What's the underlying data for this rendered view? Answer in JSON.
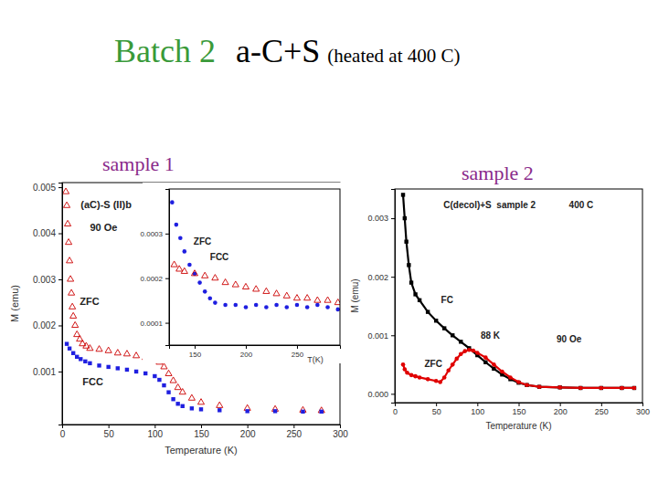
{
  "slide": {
    "title": [
      "Batch 2",
      "a-C+S",
      "(heated at 400 C)"
    ],
    "labels": [
      "sample 1",
      "sample 2"
    ]
  },
  "chart_data": [
    {
      "type": "scatter",
      "x_label": "Temperature (K)",
      "y_label": "M (emu)",
      "xlim": [
        0,
        300
      ],
      "ylim": [
        -0.00015,
        0.0051
      ],
      "xticks": [
        0,
        50,
        100,
        150,
        200,
        250,
        300
      ],
      "yticks": [
        0.001,
        0.002,
        0.003,
        0.004,
        0.005
      ],
      "grid": false,
      "annotations": [
        {
          "text": "(aC)-S (II)b",
          "x": 20,
          "y": 0.0046
        },
        {
          "text": "90 Oe",
          "x": 30,
          "y": 0.0041
        },
        {
          "text": "ZFC",
          "x": 19,
          "y": 0.0025
        },
        {
          "text": "FCC",
          "x": 22,
          "y": 0.00075
        }
      ],
      "series": [
        {
          "color": "#cc0000",
          "marker": "open-triangle",
          "x": [
            4,
            5,
            6,
            7,
            8,
            9,
            10,
            11,
            12,
            14,
            16,
            19,
            22,
            26,
            30,
            40,
            50,
            60,
            70,
            80,
            90,
            100,
            105,
            110,
            115,
            120,
            125,
            130,
            140,
            150,
            170,
            200,
            230,
            260,
            280
          ],
          "values": [
            0.0049,
            0.0046,
            0.0042,
            0.0038,
            0.0034,
            0.003,
            0.0027,
            0.0024,
            0.0022,
            0.002,
            0.0018,
            0.0017,
            0.0016,
            0.00155,
            0.0015,
            0.00148,
            0.00145,
            0.0014,
            0.00138,
            0.00134,
            0.0013,
            0.00125,
            0.0012,
            0.0011,
            0.00095,
            0.0008,
            0.00065,
            0.00055,
            0.00042,
            0.00033,
            0.00026,
            0.0002,
            0.00018,
            0.00016,
            0.00015
          ]
        },
        {
          "color": "#1f1fe0",
          "marker": "square",
          "x": [
            5,
            8,
            12,
            16,
            20,
            25,
            30,
            40,
            50,
            60,
            70,
            80,
            90,
            100,
            105,
            110,
            115,
            120,
            125,
            130,
            140,
            150,
            170,
            200,
            230,
            260,
            280
          ],
          "values": [
            0.0016,
            0.0015,
            0.0014,
            0.00132,
            0.00127,
            0.00122,
            0.00118,
            0.00113,
            0.0011,
            0.00107,
            0.00104,
            0.001,
            0.00096,
            0.0009,
            0.00082,
            0.0007,
            0.00055,
            0.0004,
            0.0003,
            0.00025,
            0.0002,
            0.00018,
            0.00016,
            0.00014,
            0.00014,
            0.00013,
            0.00013
          ]
        }
      ]
    },
    {
      "type": "scatter",
      "x_label": "T(K)",
      "xlim": [
        125,
        292
      ],
      "ylim": [
        5e-05,
        0.0004
      ],
      "xticks": [
        150,
        200,
        250
      ],
      "yticks": [
        0.0001,
        0.0002,
        0.0003
      ],
      "grid": false,
      "annotations": [
        {
          "text": "ZFC",
          "x": 149,
          "y": 0.00028
        },
        {
          "text": "FCC",
          "x": 165,
          "y": 0.000245
        }
      ],
      "series": [
        {
          "color": "#1f1fe0",
          "marker": "circle",
          "x": [
            128,
            132,
            136,
            140,
            145,
            150,
            155,
            160,
            165,
            170,
            180,
            190,
            200,
            210,
            220,
            230,
            240,
            250,
            260,
            270,
            280,
            290
          ],
          "values": [
            0.00037,
            0.00032,
            0.00029,
            0.00026,
            0.00023,
            0.00021,
            0.00019,
            0.00017,
            0.000155,
            0.000145,
            0.00014,
            0.00014,
            0.000135,
            0.00014,
            0.000135,
            0.00014,
            0.000135,
            0.00014,
            0.000135,
            0.00014,
            0.000135,
            0.00013
          ]
        },
        {
          "color": "#cc0000",
          "marker": "open-triangle",
          "x": [
            130,
            135,
            140,
            150,
            160,
            170,
            180,
            190,
            200,
            210,
            220,
            230,
            240,
            250,
            260,
            270,
            280,
            290
          ],
          "values": [
            0.00023,
            0.00022,
            0.000215,
            0.00021,
            0.000205,
            0.0002,
            0.00019,
            0.000185,
            0.00018,
            0.000175,
            0.00017,
            0.000165,
            0.00016,
            0.000155,
            0.000155,
            0.00015,
            0.00015,
            0.000145
          ]
        }
      ]
    },
    {
      "type": "scatter",
      "x_label": "Temperature (K)",
      "y_label": "M (emu)",
      "xlim": [
        0,
        300
      ],
      "ylim": [
        -0.00015,
        0.0035
      ],
      "xticks": [
        0,
        50,
        100,
        150,
        200,
        250,
        300
      ],
      "yticks": [
        {
          "value": 0,
          "label": "0.000"
        },
        0.001,
        0.002,
        0.003
      ],
      "grid": false,
      "annotations": [
        {
          "text": "C(decol)+S  sample 2",
          "x": 59,
          "y": 0.00322
        },
        {
          "text": "400 C",
          "x": 211,
          "y": 0.00322
        },
        {
          "text": "FC",
          "x": 56,
          "y": 0.00159
        },
        {
          "text": "90 Oe",
          "x": 196,
          "y": 0.00092
        },
        {
          "text": "88 K",
          "x": 104,
          "y": 0.00098
        },
        {
          "text": "ZFC",
          "x": 36,
          "y": 0.0005
        }
      ],
      "series": [
        {
          "color": "#000000",
          "marker": "square",
          "line_style": "solid",
          "x": [
            10,
            12,
            14,
            17,
            20,
            25,
            30,
            40,
            50,
            60,
            70,
            80,
            90,
            100,
            110,
            120,
            130,
            140,
            150,
            160,
            175,
            200,
            225,
            250,
            275,
            290
          ],
          "values": [
            0.0034,
            0.003,
            0.0026,
            0.0022,
            0.0019,
            0.0017,
            0.0016,
            0.0014,
            0.00125,
            0.00112,
            0.001,
            0.00089,
            0.00078,
            0.00066,
            0.00054,
            0.00043,
            0.00033,
            0.00025,
            0.00019,
            0.00015,
            0.00012,
            0.00011,
            0.0001,
            0.0001,
            0.0001,
            0.0001
          ]
        },
        {
          "color": "#e00000",
          "marker": "circle",
          "line_style": "solid",
          "x": [
            10,
            12,
            15,
            20,
            25,
            30,
            40,
            50,
            55,
            60,
            65,
            70,
            75,
            80,
            85,
            90,
            95,
            100,
            110,
            120,
            130,
            140,
            150,
            160,
            175,
            200,
            225,
            250,
            275,
            290
          ],
          "values": [
            0.0005,
            0.00042,
            0.00036,
            0.00032,
            0.0003,
            0.00028,
            0.00025,
            0.00022,
            0.0002,
            0.00028,
            0.0004,
            0.0005,
            0.0006,
            0.00068,
            0.00073,
            0.00075,
            0.00074,
            0.0007,
            0.00062,
            0.0005,
            0.00038,
            0.00028,
            0.0002,
            0.00015,
            0.00012,
            0.00011,
            0.0001,
            0.0001,
            0.0001,
            0.0001
          ]
        }
      ]
    }
  ]
}
